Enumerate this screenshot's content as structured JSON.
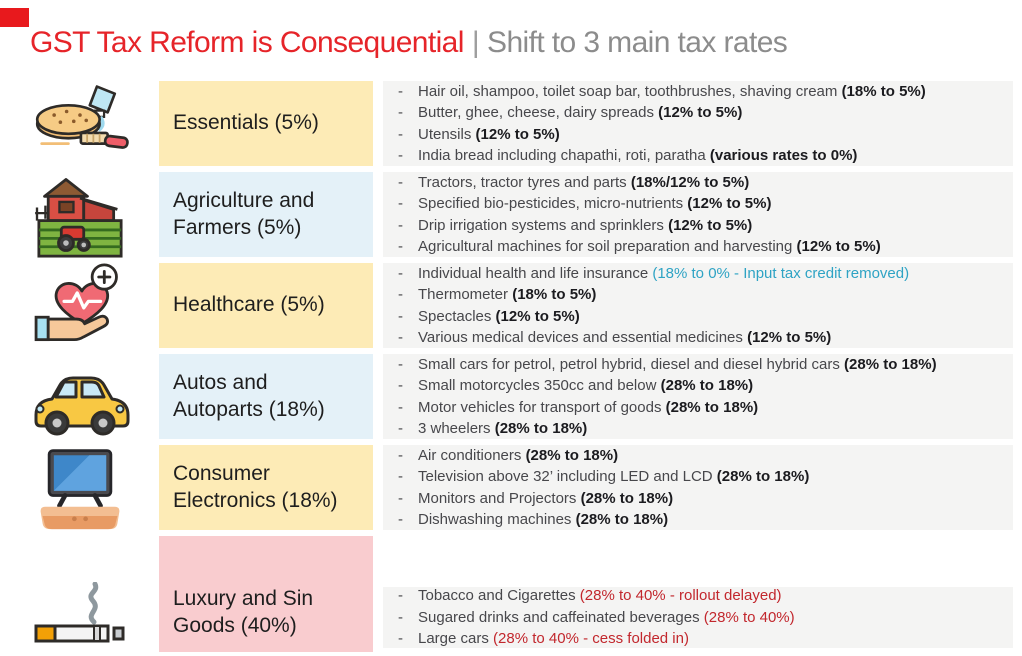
{
  "header": {
    "title_red": "GST Tax Reform is Consequential",
    "divider": "|",
    "title_gray": "Shift to 3 main tax rates"
  },
  "colors": {
    "accent_red": "#E8191D",
    "title_red": "#E62429",
    "title_gray": "#8C8C8C",
    "label_yellow": "#FDEBB6",
    "label_blue": "#E4F1F8",
    "label_pink": "#F9CCCF",
    "content_gray": "#F4F4F3",
    "note_teal": "#2EA3C4",
    "note_red": "#C2272D"
  },
  "rows": [
    {
      "label": "Essentials (5%)",
      "icon": "bread-toothbrush-icon",
      "label_bg": "#FDEBB6",
      "items": [
        {
          "text": "Hair oil, shampoo, toilet soap bar, toothbrushes, shaving cream ",
          "note": "(18% to 5%)",
          "tone": "bold"
        },
        {
          "text": "Butter, ghee, cheese, dairy spreads ",
          "note": "(12% to 5%)",
          "tone": "bold"
        },
        {
          "text": "Utensils ",
          "note": "(12% to 5%)",
          "tone": "bold"
        },
        {
          "text": "India bread including chapathi, roti, paratha ",
          "note": "(various rates to 0%)",
          "tone": "bold"
        }
      ]
    },
    {
      "label": "Agriculture and Farmers (5%)",
      "icon": "farm-icon",
      "label_bg": "#E4F1F8",
      "items": [
        {
          "text": "Tractors, tractor tyres and parts ",
          "note": "(18%/12% to 5%)",
          "tone": "bold"
        },
        {
          "text": "Specified bio-pesticides, micro-nutrients ",
          "note": "(12% to 5%)",
          "tone": "bold"
        },
        {
          "text": "Drip irrigation systems and sprinklers ",
          "note": "(12% to 5%)",
          "tone": "bold"
        },
        {
          "text": "Agricultural machines for soil preparation and harvesting ",
          "note": "(12% to 5%)",
          "tone": "bold"
        }
      ]
    },
    {
      "label": "Healthcare (5%)",
      "icon": "heart-hand-icon",
      "label_bg": "#FDEBB6",
      "items": [
        {
          "text": "Individual health and life insurance ",
          "note": "(18% to 0% - Input tax credit removed)",
          "tone": "teal"
        },
        {
          "text": "Thermometer ",
          "note": "(18% to 5%)",
          "tone": "bold"
        },
        {
          "text": "Spectacles ",
          "note": "(12% to 5%)",
          "tone": "bold"
        },
        {
          "text": "Various medical devices and essential medicines ",
          "note": "(12% to 5%)",
          "tone": "bold"
        }
      ]
    },
    {
      "label": "Autos and Autoparts (18%)",
      "icon": "car-icon",
      "label_bg": "#E4F1F8",
      "items": [
        {
          "text": "Small cars for petrol, petrol hybrid, diesel and diesel hybrid cars ",
          "note": "(28% to 18%)",
          "tone": "bold"
        },
        {
          "text": "Small motorcycles 350cc and below ",
          "note": "(28% to 18%)",
          "tone": "bold"
        },
        {
          "text": "Motor vehicles for transport of goods ",
          "note": "(28% to 18%)",
          "tone": "bold"
        },
        {
          "text": "3 wheelers ",
          "note": "(28% to 18%)",
          "tone": "bold"
        }
      ]
    },
    {
      "label": "Consumer Electronics (18%)",
      "icon": "television-icon",
      "label_bg": "#FDEBB6",
      "items": [
        {
          "text": "Air conditioners ",
          "note": "(28% to 18%)",
          "tone": "bold"
        },
        {
          "text": "Television above 32’ including LED and LCD ",
          "note": "(28% to 18%)",
          "tone": "bold"
        },
        {
          "text": "Monitors and Projectors ",
          "note": "(28% to 18%)",
          "tone": "bold"
        },
        {
          "text": "Dishwashing machines ",
          "note": "(28% to 18%)",
          "tone": "bold"
        }
      ]
    },
    {
      "label": "Luxury and Sin Goods (40%)",
      "icon": "cigarette-icon",
      "label_bg": "#F9CCCF",
      "items": [
        {
          "text": "Tobacco and Cigarettes ",
          "note": "(28% to 40% - rollout delayed)",
          "tone": "red"
        },
        {
          "text": "Sugared drinks and caffeinated beverages ",
          "note": "(28% to 40%)",
          "tone": "red"
        },
        {
          "text": "Large cars ",
          "note": "(28% to 40% - cess folded in)",
          "tone": "red"
        }
      ]
    }
  ]
}
